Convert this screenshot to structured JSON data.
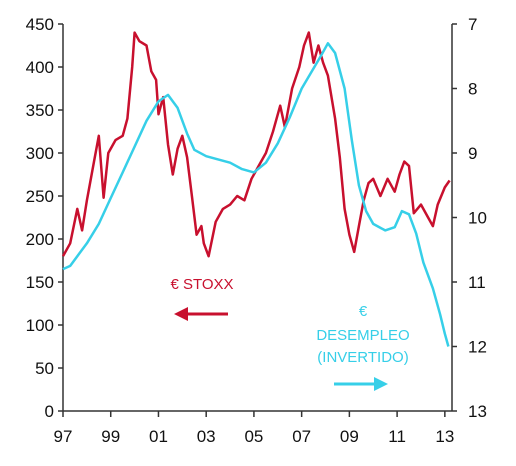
{
  "chart_data": {
    "type": "line",
    "x_unit": "year",
    "left_axis": {
      "ylim": [
        0,
        450
      ],
      "ticks": [
        0,
        50,
        100,
        150,
        200,
        250,
        300,
        350,
        400,
        450
      ]
    },
    "right_axis": {
      "ylim": [
        7,
        13
      ],
      "inverted": true,
      "ticks": [
        7,
        8,
        9,
        10,
        11,
        12,
        13
      ]
    },
    "x_axis": {
      "xlim": [
        1997,
        2013.3
      ],
      "ticks": [
        1997,
        1999,
        2001,
        2003,
        2005,
        2007,
        2009,
        2011,
        2013
      ],
      "tick_labels": [
        "97",
        "99",
        "01",
        "03",
        "05",
        "07",
        "09",
        "11",
        "13"
      ]
    },
    "grid": false,
    "series": [
      {
        "name": "€ STOXX",
        "axis": "left",
        "color": "#c8102e",
        "arrow": "left",
        "points": [
          [
            1997.0,
            180
          ],
          [
            1997.3,
            195
          ],
          [
            1997.6,
            235
          ],
          [
            1997.8,
            210
          ],
          [
            1998.0,
            245
          ],
          [
            1998.3,
            290
          ],
          [
            1998.5,
            320
          ],
          [
            1998.7,
            248
          ],
          [
            1998.9,
            300
          ],
          [
            1999.2,
            315
          ],
          [
            1999.5,
            320
          ],
          [
            1999.7,
            340
          ],
          [
            1999.9,
            400
          ],
          [
            2000.0,
            440
          ],
          [
            2000.2,
            430
          ],
          [
            2000.5,
            425
          ],
          [
            2000.7,
            395
          ],
          [
            2000.9,
            385
          ],
          [
            2001.0,
            345
          ],
          [
            2001.2,
            365
          ],
          [
            2001.4,
            310
          ],
          [
            2001.6,
            275
          ],
          [
            2001.8,
            305
          ],
          [
            2002.0,
            320
          ],
          [
            2002.2,
            295
          ],
          [
            2002.4,
            250
          ],
          [
            2002.6,
            205
          ],
          [
            2002.8,
            215
          ],
          [
            2002.9,
            195
          ],
          [
            2003.1,
            180
          ],
          [
            2003.4,
            220
          ],
          [
            2003.7,
            235
          ],
          [
            2004.0,
            240
          ],
          [
            2004.3,
            250
          ],
          [
            2004.6,
            245
          ],
          [
            2004.9,
            270
          ],
          [
            2005.2,
            285
          ],
          [
            2005.5,
            300
          ],
          [
            2005.8,
            325
          ],
          [
            2006.1,
            355
          ],
          [
            2006.3,
            330
          ],
          [
            2006.6,
            375
          ],
          [
            2006.9,
            400
          ],
          [
            2007.1,
            425
          ],
          [
            2007.3,
            440
          ],
          [
            2007.5,
            405
          ],
          [
            2007.7,
            425
          ],
          [
            2007.9,
            405
          ],
          [
            2008.1,
            390
          ],
          [
            2008.4,
            340
          ],
          [
            2008.6,
            295
          ],
          [
            2008.8,
            235
          ],
          [
            2009.0,
            205
          ],
          [
            2009.2,
            185
          ],
          [
            2009.4,
            215
          ],
          [
            2009.6,
            245
          ],
          [
            2009.8,
            265
          ],
          [
            2010.0,
            270
          ],
          [
            2010.3,
            250
          ],
          [
            2010.6,
            270
          ],
          [
            2010.9,
            255
          ],
          [
            2011.1,
            275
          ],
          [
            2011.3,
            290
          ],
          [
            2011.5,
            285
          ],
          [
            2011.7,
            230
          ],
          [
            2012.0,
            240
          ],
          [
            2012.3,
            225
          ],
          [
            2012.5,
            215
          ],
          [
            2012.7,
            240
          ],
          [
            2013.0,
            260
          ],
          [
            2013.2,
            268
          ]
        ]
      },
      {
        "name": "€ DESEMPLEO (INVERTIDO)",
        "axis": "right",
        "color": "#36cfe8",
        "arrow": "right",
        "points": [
          [
            1997.0,
            10.8
          ],
          [
            1997.3,
            10.75
          ],
          [
            1997.6,
            10.6
          ],
          [
            1998.0,
            10.4
          ],
          [
            1998.5,
            10.1
          ],
          [
            1999.0,
            9.7
          ],
          [
            1999.5,
            9.3
          ],
          [
            2000.0,
            8.9
          ],
          [
            2000.5,
            8.5
          ],
          [
            2001.0,
            8.2
          ],
          [
            2001.4,
            8.1
          ],
          [
            2001.8,
            8.3
          ],
          [
            2002.2,
            8.7
          ],
          [
            2002.5,
            8.95
          ],
          [
            2003.0,
            9.05
          ],
          [
            2003.5,
            9.1
          ],
          [
            2004.0,
            9.15
          ],
          [
            2004.5,
            9.25
          ],
          [
            2005.0,
            9.3
          ],
          [
            2005.5,
            9.15
          ],
          [
            2006.0,
            8.85
          ],
          [
            2006.5,
            8.45
          ],
          [
            2007.0,
            8.0
          ],
          [
            2007.4,
            7.75
          ],
          [
            2007.8,
            7.5
          ],
          [
            2008.1,
            7.3
          ],
          [
            2008.4,
            7.45
          ],
          [
            2008.8,
            8.0
          ],
          [
            2009.1,
            8.8
          ],
          [
            2009.4,
            9.5
          ],
          [
            2009.7,
            9.9
          ],
          [
            2010.0,
            10.1
          ],
          [
            2010.5,
            10.2
          ],
          [
            2010.9,
            10.15
          ],
          [
            2011.2,
            9.9
          ],
          [
            2011.5,
            9.95
          ],
          [
            2011.8,
            10.25
          ],
          [
            2012.1,
            10.7
          ],
          [
            2012.5,
            11.1
          ],
          [
            2012.8,
            11.5
          ],
          [
            2013.0,
            11.8
          ],
          [
            2013.15,
            12.0
          ]
        ]
      }
    ]
  },
  "labels": {
    "stoxx": "€ STOXX",
    "desempleo_symbol": "€",
    "desempleo_line1": "DESEMPLEO",
    "desempleo_line2": "(INVERTIDO)"
  }
}
